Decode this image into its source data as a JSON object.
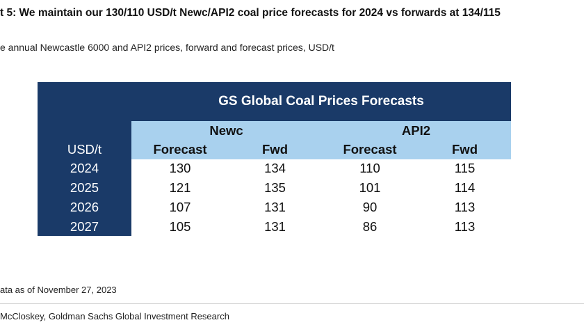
{
  "title": "t 5: We maintain our 130/110 USD/t Newc/API2 coal price forecasts for 2024 vs forwards at 134/115",
  "subtitle": "e annual Newcastle 6000 and API2 prices, forward and forecast prices, USD/t",
  "table": {
    "title": "GS Global Coal Prices Forecasts",
    "unit_label": "USD/t",
    "groups": [
      "Newc",
      "API2"
    ],
    "subheaders": [
      "Forecast",
      "Fwd",
      "Forecast",
      "Fwd"
    ],
    "rows": [
      {
        "year": "2024",
        "values": [
          "130",
          "134",
          "110",
          "115"
        ]
      },
      {
        "year": "2025",
        "values": [
          "121",
          "135",
          "101",
          "114"
        ]
      },
      {
        "year": "2026",
        "values": [
          "107",
          "131",
          "90",
          "113"
        ]
      },
      {
        "year": "2027",
        "values": [
          "105",
          "131",
          "86",
          "113"
        ]
      }
    ]
  },
  "note": "ata as of November 27, 2023",
  "source": "McCloskey, Goldman Sachs Global Investment Research",
  "colors": {
    "dark_blue": "#1a3a68",
    "light_blue": "#a9d1ee"
  }
}
